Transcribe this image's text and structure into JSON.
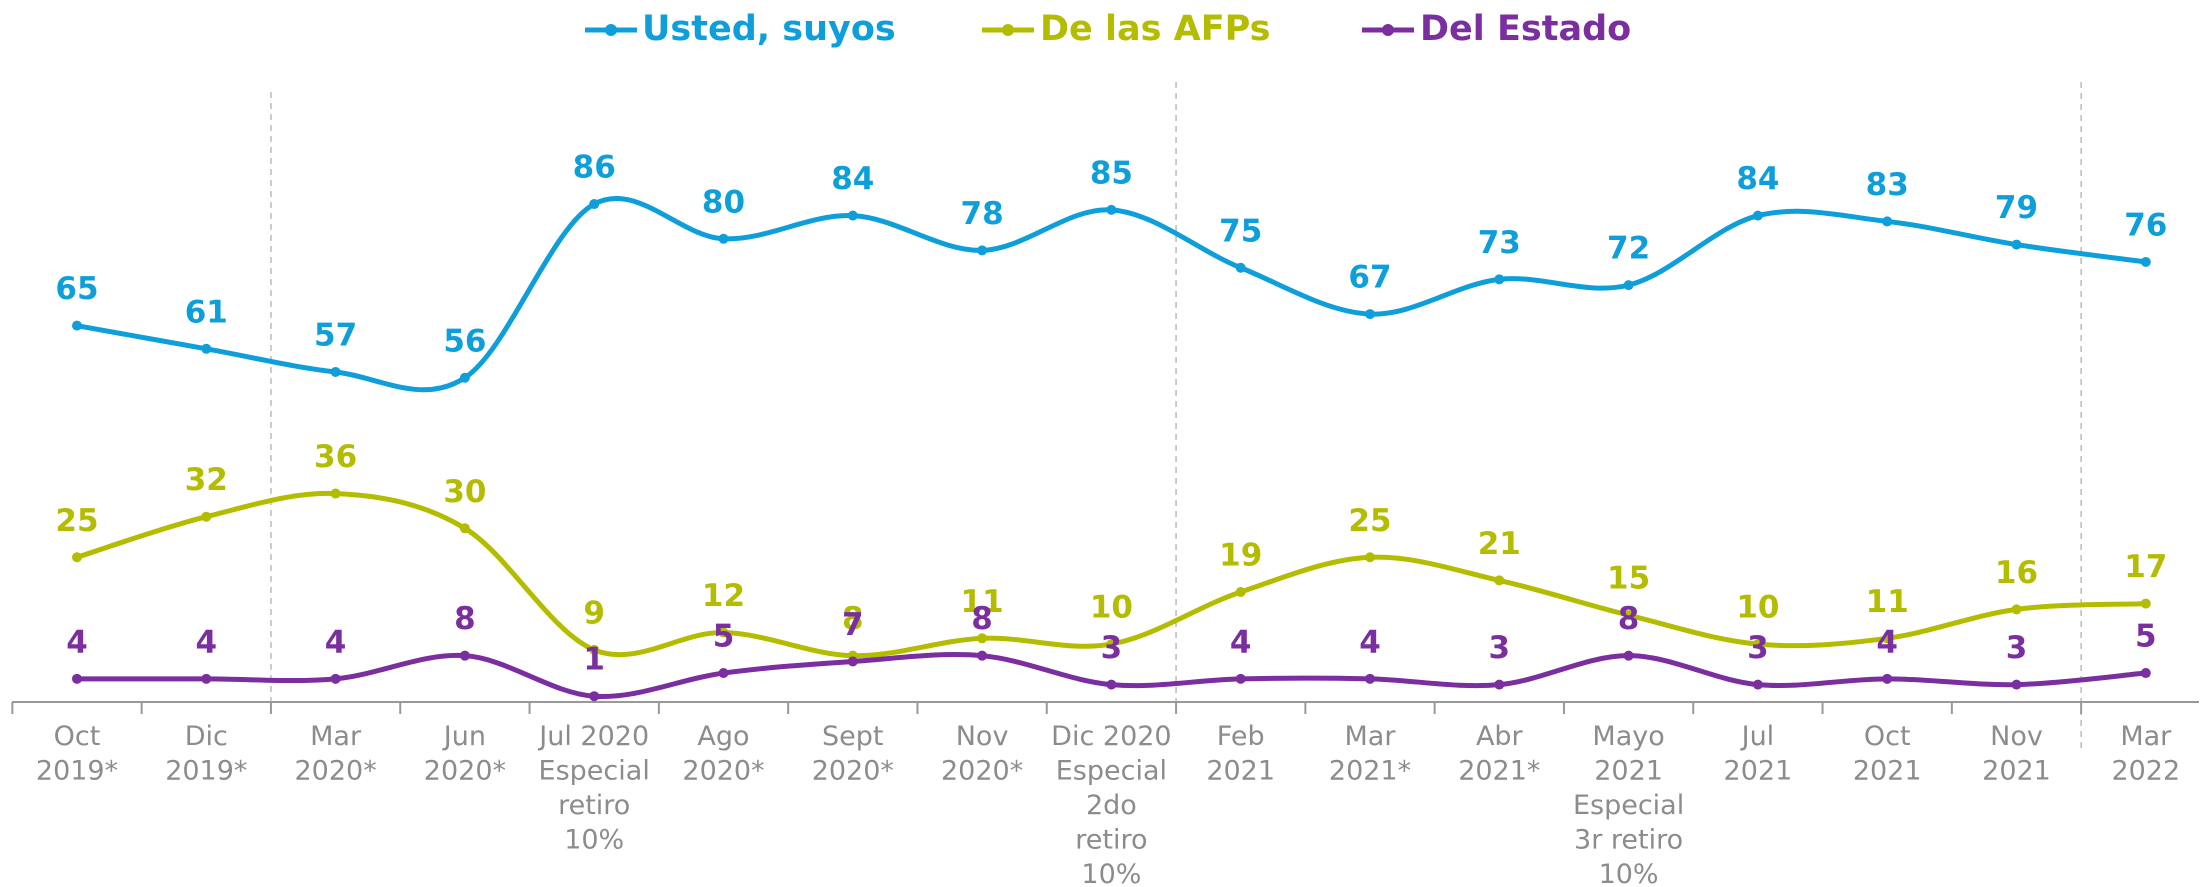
{
  "chart_data": {
    "type": "line",
    "categories": [
      [
        "Oct",
        "2019*"
      ],
      [
        "Dic",
        "2019*"
      ],
      [
        "Mar",
        "2020*"
      ],
      [
        "Jun",
        "2020*"
      ],
      [
        "Jul 2020",
        "Especial",
        "retiro",
        "10%"
      ],
      [
        "Ago",
        "2020*"
      ],
      [
        "Sept",
        "2020*"
      ],
      [
        "Nov",
        "2020*"
      ],
      [
        "Dic 2020",
        "Especial",
        "2do",
        "retiro",
        "10%"
      ],
      [
        "Feb",
        "2021"
      ],
      [
        "Mar",
        "2021*"
      ],
      [
        "Abr",
        "2021*"
      ],
      [
        "Mayo",
        "2021",
        "Especial",
        "3r retiro",
        "10%"
      ],
      [
        "Jul",
        "2021"
      ],
      [
        "Oct",
        "2021"
      ],
      [
        "Nov",
        "2021"
      ],
      [
        "Mar",
        "2022"
      ]
    ],
    "series": [
      {
        "name": "Usted, suyos",
        "color": "#0e9fdb",
        "values": [
          65,
          61,
          57,
          56,
          86,
          80,
          84,
          78,
          85,
          75,
          67,
          73,
          72,
          84,
          83,
          79,
          76
        ]
      },
      {
        "name": "De las AFPs",
        "color": "#b4bc00",
        "values": [
          25,
          32,
          36,
          30,
          9,
          12,
          8,
          11,
          10,
          19,
          25,
          21,
          15,
          10,
          11,
          16,
          17
        ]
      },
      {
        "name": "Del Estado",
        "color": "#7a2e9f",
        "values": [
          4,
          4,
          4,
          8,
          1,
          5,
          7,
          8,
          3,
          4,
          4,
          3,
          8,
          3,
          4,
          3,
          5
        ]
      }
    ],
    "ylim": [
      0,
      100
    ],
    "legend": "top"
  }
}
